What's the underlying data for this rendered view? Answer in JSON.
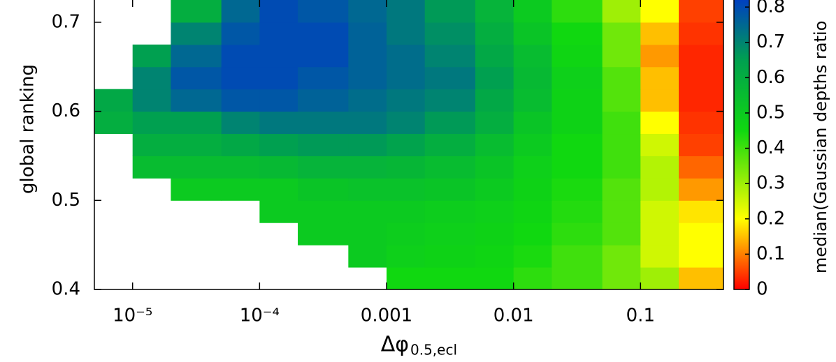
{
  "chart_data": {
    "type": "heatmap",
    "xlabel": "Δφ",
    "xlabel_subscript": "0.5,ecl",
    "ylabel": "global ranking",
    "colorbar_label": "median(Gaussian depths ratio",
    "xscale": "log",
    "xlim": [
      5e-06,
      0.45
    ],
    "ylim": [
      0.4,
      0.725
    ],
    "xticks": [
      {
        "value": 1e-05,
        "label": "10⁻⁵"
      },
      {
        "value": 0.0001,
        "label": "10⁻⁴"
      },
      0.001,
      0.01,
      0.1
    ],
    "yticks": [
      0.4,
      0.5,
      0.6,
      0.7
    ],
    "clim": [
      0,
      0.82
    ],
    "cticks": [
      0,
      0.1,
      0.2,
      0.3,
      0.4,
      0.5,
      0.6,
      0.7,
      0.8
    ],
    "colormap": [
      {
        "value": 0,
        "color": "#ff0000"
      },
      {
        "value": 0.2,
        "color": "#ffff00"
      },
      {
        "value": 0.45,
        "color": "#10d810"
      },
      {
        "value": 0.65,
        "color": "#00a050"
      },
      {
        "value": 0.82,
        "color": "#0040c0"
      }
    ],
    "xbins": [
      5e-06,
      1e-05,
      2e-05,
      5e-05,
      0.0001,
      0.0002,
      0.0005,
      0.001,
      0.002,
      0.005,
      0.01,
      0.02,
      0.05,
      0.1,
      0.2,
      0.45
    ],
    "ybins": [
      0.4,
      0.425,
      0.45,
      0.475,
      0.5,
      0.525,
      0.55,
      0.575,
      0.6,
      0.625,
      0.65,
      0.675,
      0.7,
      0.725
    ],
    "values": [
      [
        null,
        null,
        null,
        null,
        null,
        null,
        null,
        0.45,
        0.45,
        0.45,
        0.42,
        0.4,
        0.35,
        0.3,
        0.15
      ],
      [
        null,
        null,
        null,
        null,
        null,
        null,
        0.5,
        0.48,
        0.47,
        0.46,
        0.44,
        0.4,
        0.35,
        0.25,
        0.2
      ],
      [
        null,
        null,
        null,
        null,
        null,
        0.5,
        0.5,
        0.49,
        0.48,
        0.47,
        0.45,
        0.42,
        0.38,
        0.25,
        0.2
      ],
      [
        null,
        null,
        null,
        null,
        0.5,
        0.5,
        0.5,
        0.5,
        0.49,
        0.48,
        0.46,
        0.43,
        0.38,
        0.25,
        0.18
      ],
      [
        null,
        null,
        0.5,
        0.5,
        0.5,
        0.52,
        0.53,
        0.53,
        0.52,
        0.5,
        0.47,
        0.44,
        0.38,
        0.28,
        0.12
      ],
      [
        null,
        0.55,
        0.55,
        0.55,
        0.56,
        0.58,
        0.58,
        0.57,
        0.55,
        0.52,
        0.48,
        0.45,
        0.4,
        0.28,
        0.08
      ],
      [
        null,
        0.6,
        0.6,
        0.62,
        0.65,
        0.66,
        0.66,
        0.64,
        0.6,
        0.55,
        0.5,
        0.45,
        0.4,
        0.25,
        0.05
      ],
      [
        0.6,
        0.65,
        0.65,
        0.7,
        0.72,
        0.72,
        0.72,
        0.7,
        0.66,
        0.6,
        0.52,
        0.47,
        0.4,
        0.2,
        0.04
      ],
      [
        0.62,
        0.7,
        0.75,
        0.78,
        0.78,
        0.76,
        0.74,
        0.72,
        0.7,
        0.62,
        0.55,
        0.47,
        0.38,
        0.15,
        0.03
      ],
      [
        null,
        0.7,
        0.78,
        0.8,
        0.8,
        0.78,
        0.76,
        0.74,
        0.72,
        0.65,
        0.56,
        0.48,
        0.38,
        0.15,
        0.03
      ],
      [
        null,
        0.65,
        0.75,
        0.8,
        0.8,
        0.8,
        0.76,
        0.74,
        0.7,
        0.62,
        0.55,
        0.46,
        0.35,
        0.12,
        0.03
      ],
      [
        null,
        null,
        0.7,
        0.78,
        0.8,
        0.8,
        0.76,
        0.72,
        0.68,
        0.6,
        0.52,
        0.45,
        0.35,
        0.15,
        0.04
      ],
      [
        null,
        null,
        0.6,
        0.75,
        0.8,
        0.78,
        0.75,
        0.72,
        0.66,
        0.58,
        0.5,
        0.42,
        0.3,
        0.2,
        0.05
      ]
    ]
  }
}
